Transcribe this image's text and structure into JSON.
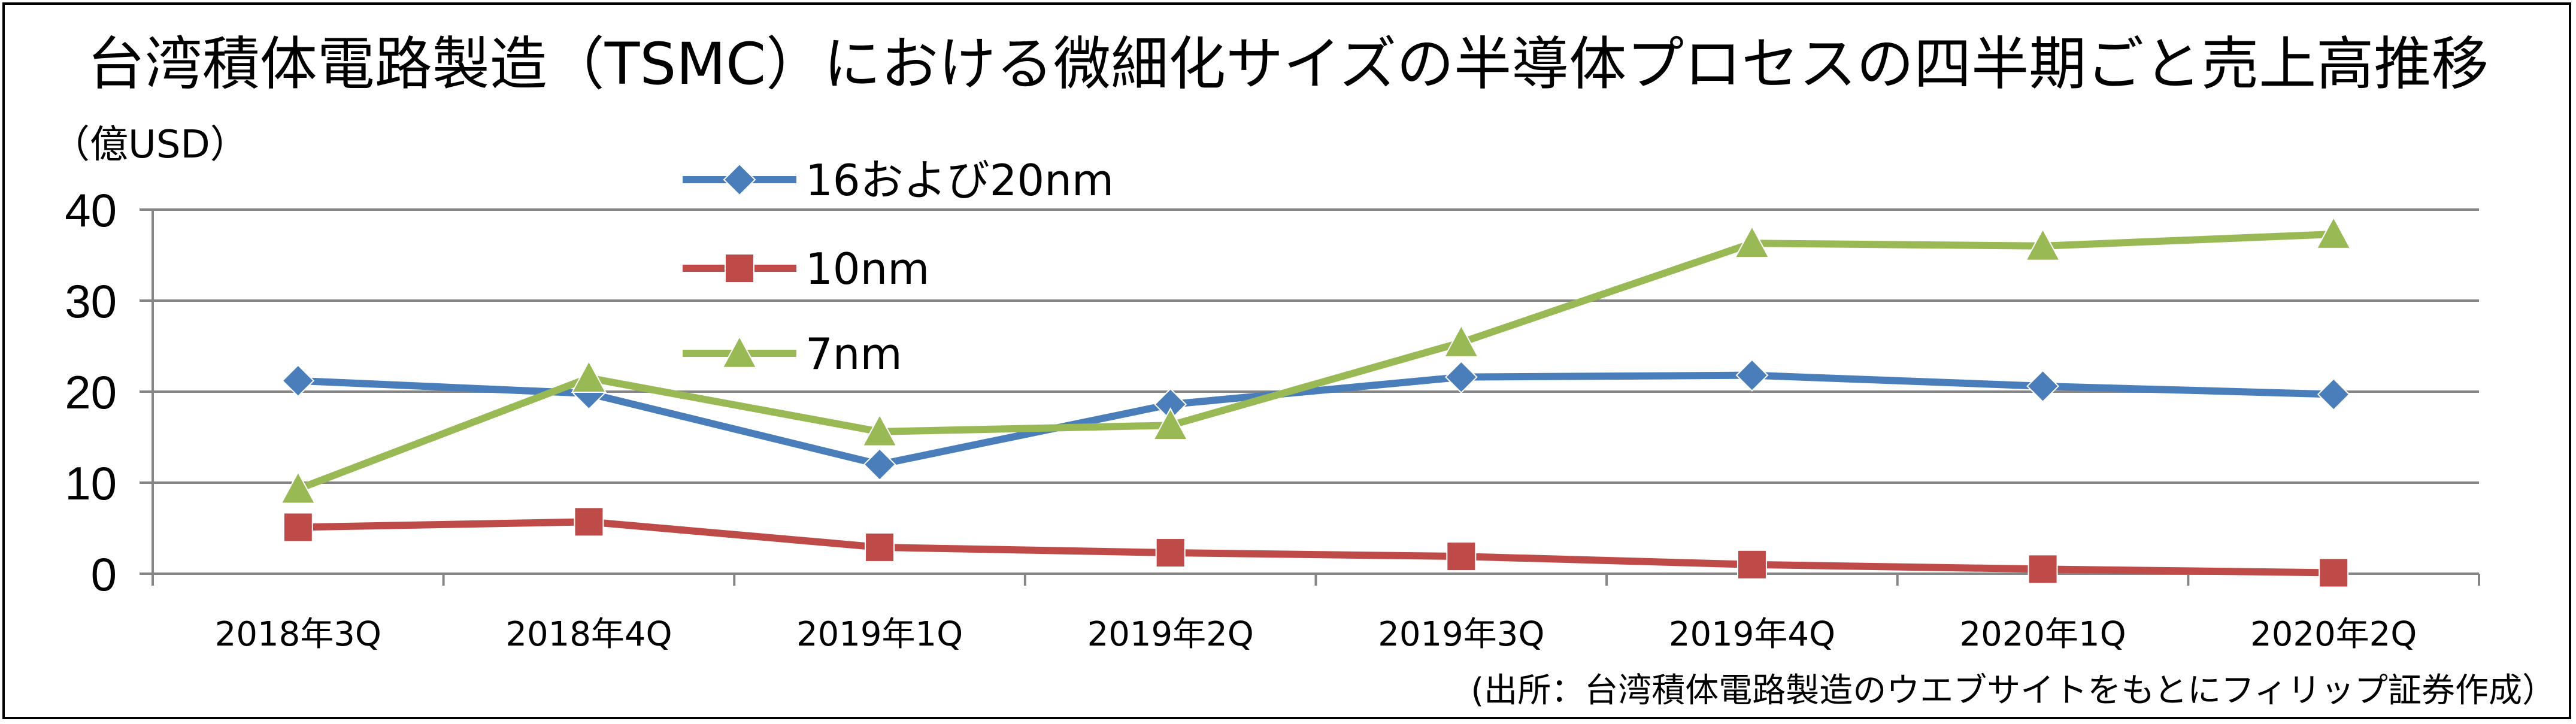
{
  "chart_data": {
    "type": "line",
    "title": "台湾積体電路製造（TSMC）における微細化サイズの半導体プロセスの四半期ごと売上高推移",
    "ylabel": "（億USD）",
    "xlabel": "",
    "ylim": [
      0,
      40
    ],
    "yticks": [
      "0",
      "10",
      "20",
      "30",
      "40"
    ],
    "grid": true,
    "legend_position": "top-left",
    "categories": [
      "2018年3Q",
      "2018年4Q",
      "2019年1Q",
      "2019年2Q",
      "2019年3Q",
      "2019年4Q",
      "2020年1Q",
      "2020年2Q"
    ],
    "series": [
      {
        "name": "16および20nm",
        "color": "#4a7ebb",
        "marker": "diamond",
        "values": [
          21.2,
          19.8,
          12.0,
          18.6,
          21.6,
          21.8,
          20.6,
          19.7
        ]
      },
      {
        "name": "10nm",
        "color": "#be4b48",
        "marker": "square",
        "values": [
          5.1,
          5.7,
          2.9,
          2.3,
          1.9,
          1.0,
          0.5,
          0.1
        ]
      },
      {
        "name": "7nm",
        "color": "#98b954",
        "marker": "triangle",
        "values": [
          9.3,
          21.5,
          15.6,
          16.3,
          25.4,
          36.3,
          36.0,
          37.3
        ]
      }
    ],
    "source": "(出所：台湾積体電路製造のウエブサイトをもとにフィリップ証券作成）"
  }
}
